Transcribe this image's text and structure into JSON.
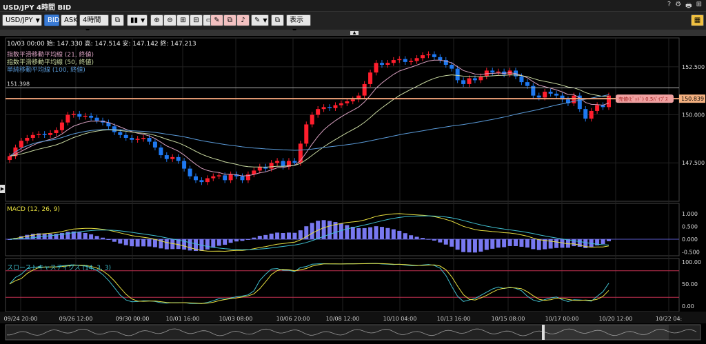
{
  "window": {
    "title": "USD/JPY 4時間 BID"
  },
  "title_controls": [
    "?",
    "⚙",
    "🖶",
    "⊞"
  ],
  "toolbar": {
    "symbol": "USD/JPY",
    "bid": "BID",
    "ask": "ASK",
    "period": "4時間",
    "display": "表示"
  },
  "ohlc": {
    "text": "10/03 00:00  始: 147.330  高: 147.514  安: 147.142  終: 147.213"
  },
  "legend": {
    "ema21": "指数平滑移動平均線 (21, 終値)",
    "ema50": "指数平滑移動平均線 (50, 終値)",
    "sma100": "単純移動平均線 (100, 終値)"
  },
  "colors": {
    "up": "#ff1e2d",
    "down": "#1e78f0",
    "ema21": "#d8a0c0",
    "ema50": "#c8d8a0",
    "sma100": "#5a9ad8",
    "macd": "#e8e040",
    "signal": "#40c0d0",
    "hist": "#7878f0",
    "price_line": "#f2a37a"
  },
  "price_axis": [
    "152.500",
    "150.000",
    "147.500"
  ],
  "hline_label": "151.398",
  "current_price": "150.839",
  "current_tag": "売値(ﾋﾞｯﾄﾞ) 0.5ﾊﾟｲﾌﾟｽ",
  "macd": {
    "label": "MACD (12, 26, 9)",
    "axis": [
      "1.000",
      "0.500",
      "0.000",
      "-0.500"
    ]
  },
  "stoch": {
    "label": "スローストキャスティクス (14, 3, 3)",
    "axis": [
      "100.00",
      "50.00",
      "0.00"
    ]
  },
  "time_axis": [
    "09/24 20:00",
    "09/26 12:00",
    "09/30 00:00",
    "10/01 16:00",
    "10/03 08:00",
    "10/06 20:00",
    "10/08 12:00",
    "10/10 04:00",
    "10/13 16:00",
    "10/15 08:00",
    "10/17 00:00",
    "10/20 12:00",
    "10/22 04:"
  ],
  "chart_data": {
    "type": "candlestick",
    "closes": [
      147.85,
      148.3,
      148.65,
      148.8,
      148.95,
      149.0,
      148.95,
      149.05,
      149.2,
      149.6,
      150.0,
      150.05,
      149.9,
      149.95,
      149.85,
      149.7,
      149.6,
      149.4,
      149.1,
      148.95,
      148.8,
      148.7,
      148.75,
      148.8,
      148.6,
      148.3,
      147.9,
      147.7,
      147.8,
      147.6,
      147.2,
      146.8,
      146.6,
      146.5,
      146.7,
      146.8,
      146.85,
      146.6,
      146.9,
      146.8,
      146.6,
      146.9,
      147.1,
      147.3,
      147.2,
      147.5,
      147.6,
      147.3,
      147.6,
      147.5,
      148.5,
      149.5,
      150.0,
      150.3,
      150.4,
      150.35,
      150.5,
      150.6,
      150.7,
      150.8,
      151.0,
      151.6,
      152.2,
      152.7,
      152.6,
      152.7,
      152.85,
      152.9,
      152.75,
      152.8,
      152.95,
      153.1,
      153.15,
      153.0,
      152.85,
      152.6,
      152.4,
      151.8,
      151.6,
      151.9,
      151.8,
      152.0,
      152.3,
      152.2,
      152.25,
      152.1,
      152.3,
      152.0,
      151.7,
      151.5,
      151.0,
      150.9,
      151.2,
      151.1,
      151.0,
      150.8,
      150.6,
      151.0,
      150.3,
      149.8,
      150.2,
      150.5,
      150.4,
      151.0
    ],
    "ema21": "smoothed line",
    "hlines": [
      151.398
    ],
    "last": 150.839
  }
}
